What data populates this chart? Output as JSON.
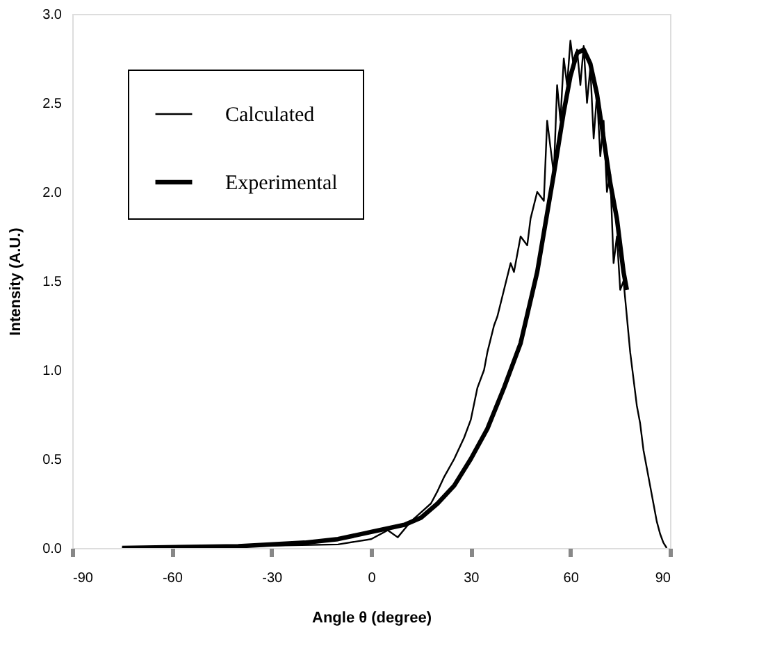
{
  "chart_data": {
    "type": "line",
    "xlabel": "Angle θ (degree)",
    "ylabel": "Intensity (A.U.)",
    "xlim": [
      -90,
      90
    ],
    "xticks": [
      -90,
      -60,
      -30,
      0,
      30,
      60,
      90
    ],
    "ylim": [
      0,
      3
    ],
    "yticks": [
      {
        "value": 0,
        "label": "0.0"
      },
      {
        "value": 0.5,
        "label": "0.5"
      },
      {
        "value": 1,
        "label": "1.0"
      },
      {
        "value": 1.5,
        "label": "1.5"
      },
      {
        "value": 2,
        "label": "2.0"
      },
      {
        "value": 2.5,
        "label": "2.5"
      },
      {
        "value": 3,
        "label": "3.0"
      }
    ],
    "legend": "top left",
    "grid": false,
    "series": [
      {
        "name": "Calculated",
        "color": "#000000",
        "x": [
          -75,
          -40,
          -10,
          0,
          5,
          8,
          12,
          15,
          18,
          20,
          22,
          25,
          28,
          30,
          32,
          34,
          35,
          37,
          38,
          40,
          42,
          43,
          45,
          47,
          48,
          50,
          52,
          53,
          55,
          56,
          57,
          58,
          59,
          60,
          61,
          62,
          63,
          64,
          65,
          66,
          67,
          68,
          69,
          70,
          71,
          72,
          73,
          74,
          75,
          76,
          77,
          78,
          79,
          80,
          81,
          82,
          83,
          84,
          85,
          86,
          87,
          88,
          89
        ],
        "values": [
          0,
          0.01,
          0.02,
          0.05,
          0.1,
          0.06,
          0.15,
          0.2,
          0.25,
          0.32,
          0.4,
          0.5,
          0.62,
          0.72,
          0.9,
          1.0,
          1.1,
          1.25,
          1.3,
          1.45,
          1.6,
          1.55,
          1.75,
          1.7,
          1.85,
          2.0,
          1.95,
          2.4,
          2.1,
          2.6,
          2.4,
          2.75,
          2.6,
          2.85,
          2.7,
          2.8,
          2.6,
          2.82,
          2.5,
          2.7,
          2.3,
          2.55,
          2.2,
          2.4,
          2.0,
          2.1,
          1.6,
          1.75,
          1.45,
          1.5,
          1.3,
          1.1,
          0.95,
          0.8,
          0.7,
          0.55,
          0.45,
          0.35,
          0.25,
          0.15,
          0.08,
          0.03,
          0
        ]
      },
      {
        "name": "Experimental",
        "color": "#000000",
        "x": [
          -75,
          -40,
          -20,
          -10,
          0,
          10,
          15,
          20,
          25,
          30,
          35,
          40,
          45,
          50,
          55,
          58,
          60,
          62,
          64,
          66,
          68,
          70,
          72,
          74,
          76,
          77
        ],
        "values": [
          0,
          0.01,
          0.03,
          0.05,
          0.09,
          0.13,
          0.17,
          0.25,
          0.35,
          0.5,
          0.67,
          0.9,
          1.15,
          1.55,
          2.1,
          2.45,
          2.65,
          2.78,
          2.8,
          2.72,
          2.55,
          2.3,
          2.05,
          1.85,
          1.55,
          1.45
        ]
      }
    ]
  }
}
